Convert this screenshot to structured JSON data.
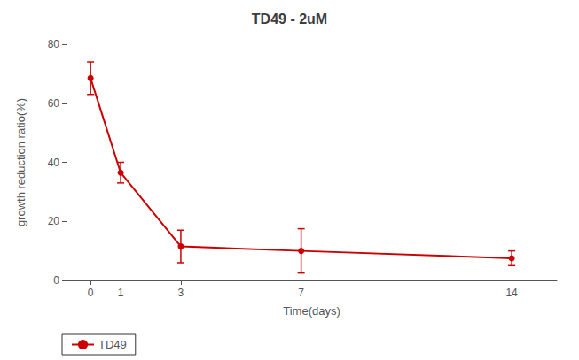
{
  "chart_data": {
    "type": "line",
    "title": "TD49 - 2uM",
    "xlabel": "Time(days)",
    "ylabel": "growth reduction ratio(%)",
    "x": [
      0,
      1,
      3,
      7,
      14
    ],
    "series": [
      {
        "name": "TD49",
        "color": "#cc0000",
        "marker": "circle",
        "values": [
          68.5,
          36.5,
          11.5,
          10.0,
          7.5
        ],
        "yerr": [
          5.5,
          3.5,
          5.5,
          7.5,
          2.5
        ]
      }
    ],
    "xlim": [
      -0.8,
      15.5
    ],
    "xticks": [
      0,
      1,
      3,
      7,
      14
    ],
    "ylim": [
      0,
      80
    ],
    "yticks": [
      0,
      20,
      40,
      60,
      80
    ],
    "grid": false,
    "legend": "lower left"
  }
}
